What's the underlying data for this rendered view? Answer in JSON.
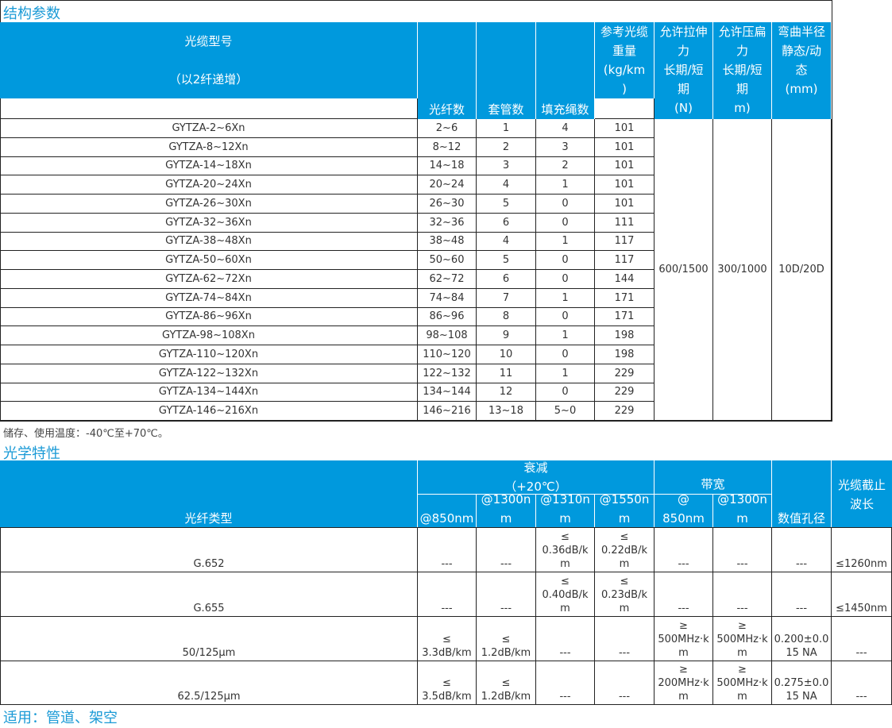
{
  "structure": {
    "title": "结构参数",
    "headers": {
      "model": "光缆型号\n\n（以2纤递增）",
      "fibers": "光纤数",
      "tubes": "套管数",
      "fillers": "填充绳数",
      "weight": "参考光缆\n重量\n(kg/km\n)",
      "tensile": "允许拉伸\n力\n长期/短\n期\n(N)",
      "crush": "允许压扁\n力\n长期/短\n期\nm)",
      "bend": "弯曲半径\n静态/动\n态\n(mm)"
    },
    "rows": [
      [
        "GYTZA-2~6Xn",
        "2~6",
        "1",
        "4",
        "101"
      ],
      [
        "GYTZA-8~12Xn",
        "8~12",
        "2",
        "3",
        "101"
      ],
      [
        "GYTZA-14~18Xn",
        "14~18",
        "3",
        "2",
        "101"
      ],
      [
        "GYTZA-20~24Xn",
        "20~24",
        "4",
        "1",
        "101"
      ],
      [
        "GYTZA-26~30Xn",
        "26~30",
        "5",
        "0",
        "101"
      ],
      [
        "GYTZA-32~36Xn",
        "32~36",
        "6",
        "0",
        "111"
      ],
      [
        "GYTZA-38~48Xn",
        "38~48",
        "4",
        "1",
        "117"
      ],
      [
        "GYTZA-50~60Xn",
        "50~60",
        "5",
        "0",
        "117"
      ],
      [
        "GYTZA-62~72Xn",
        "62~72",
        "6",
        "0",
        "144"
      ],
      [
        "GYTZA-74~84Xn",
        "74~84",
        "7",
        "1",
        "171"
      ],
      [
        "GYTZA-86~96Xn",
        "86~96",
        "8",
        "0",
        "171"
      ],
      [
        "GYTZA-98~108Xn",
        "98~108",
        "9",
        "1",
        "198"
      ],
      [
        "GYTZA-110~120Xn",
        "110~120",
        "10",
        "0",
        "198"
      ],
      [
        "GYTZA-122~132Xn",
        "122~132",
        "11",
        "1",
        "229"
      ],
      [
        "GYTZA-134~144Xn",
        "134~144",
        "12",
        "0",
        "229"
      ],
      [
        "GYTZA-146~216Xn",
        "146~216",
        "13~18",
        "5~0",
        "229"
      ]
    ],
    "merged": {
      "tensile": "600/1500",
      "crush": "300/1000",
      "bend": "10D/20D"
    },
    "note": "储存、使用温度：-40℃至+70℃。"
  },
  "optical": {
    "title": "光学特性",
    "headers": {
      "type": "光纤类型",
      "attenuation": "衰减\n（+20℃）",
      "bandwidth": "带宽",
      "na": "数值孔径",
      "cutoff": "光缆截止\n波长",
      "sub": [
        "@850nm",
        "@1300n\nm",
        "@1310n\nm",
        "@1550n\nm",
        "@\n850nm",
        "@1300n\nm"
      ]
    },
    "rows": [
      [
        "G.652",
        "---",
        "---",
        "≤\n0.36dB/k\nm",
        "≤\n0.22dB/k\nm",
        "---",
        "---",
        "---",
        "≤1260nm"
      ],
      [
        "G.655",
        "---",
        "---",
        "≤\n0.40dB/k\nm",
        "≤\n0.23dB/k\nm",
        "---",
        "---",
        "---",
        "≤1450nm"
      ],
      [
        "50/125μm",
        "≤\n3.3dB/km",
        "≤\n1.2dB/km",
        "---",
        "---",
        "≥\n500MHz·k\nm",
        "≥\n500MHz·k\nm",
        "0.200±0.0\n15 NA",
        "---"
      ],
      [
        "62.5/125μm",
        "≤\n3.5dB/km",
        "≤\n1.2dB/km",
        "---",
        "---",
        "≥\n200MHz·k\nm",
        "≥\n500MHz·k\nm",
        "0.275±0.0\n15 NA",
        "---"
      ]
    ]
  },
  "footer": "适用：管道、架空",
  "colors": {
    "header": "#0099dd",
    "title": "#1a9ad6"
  }
}
